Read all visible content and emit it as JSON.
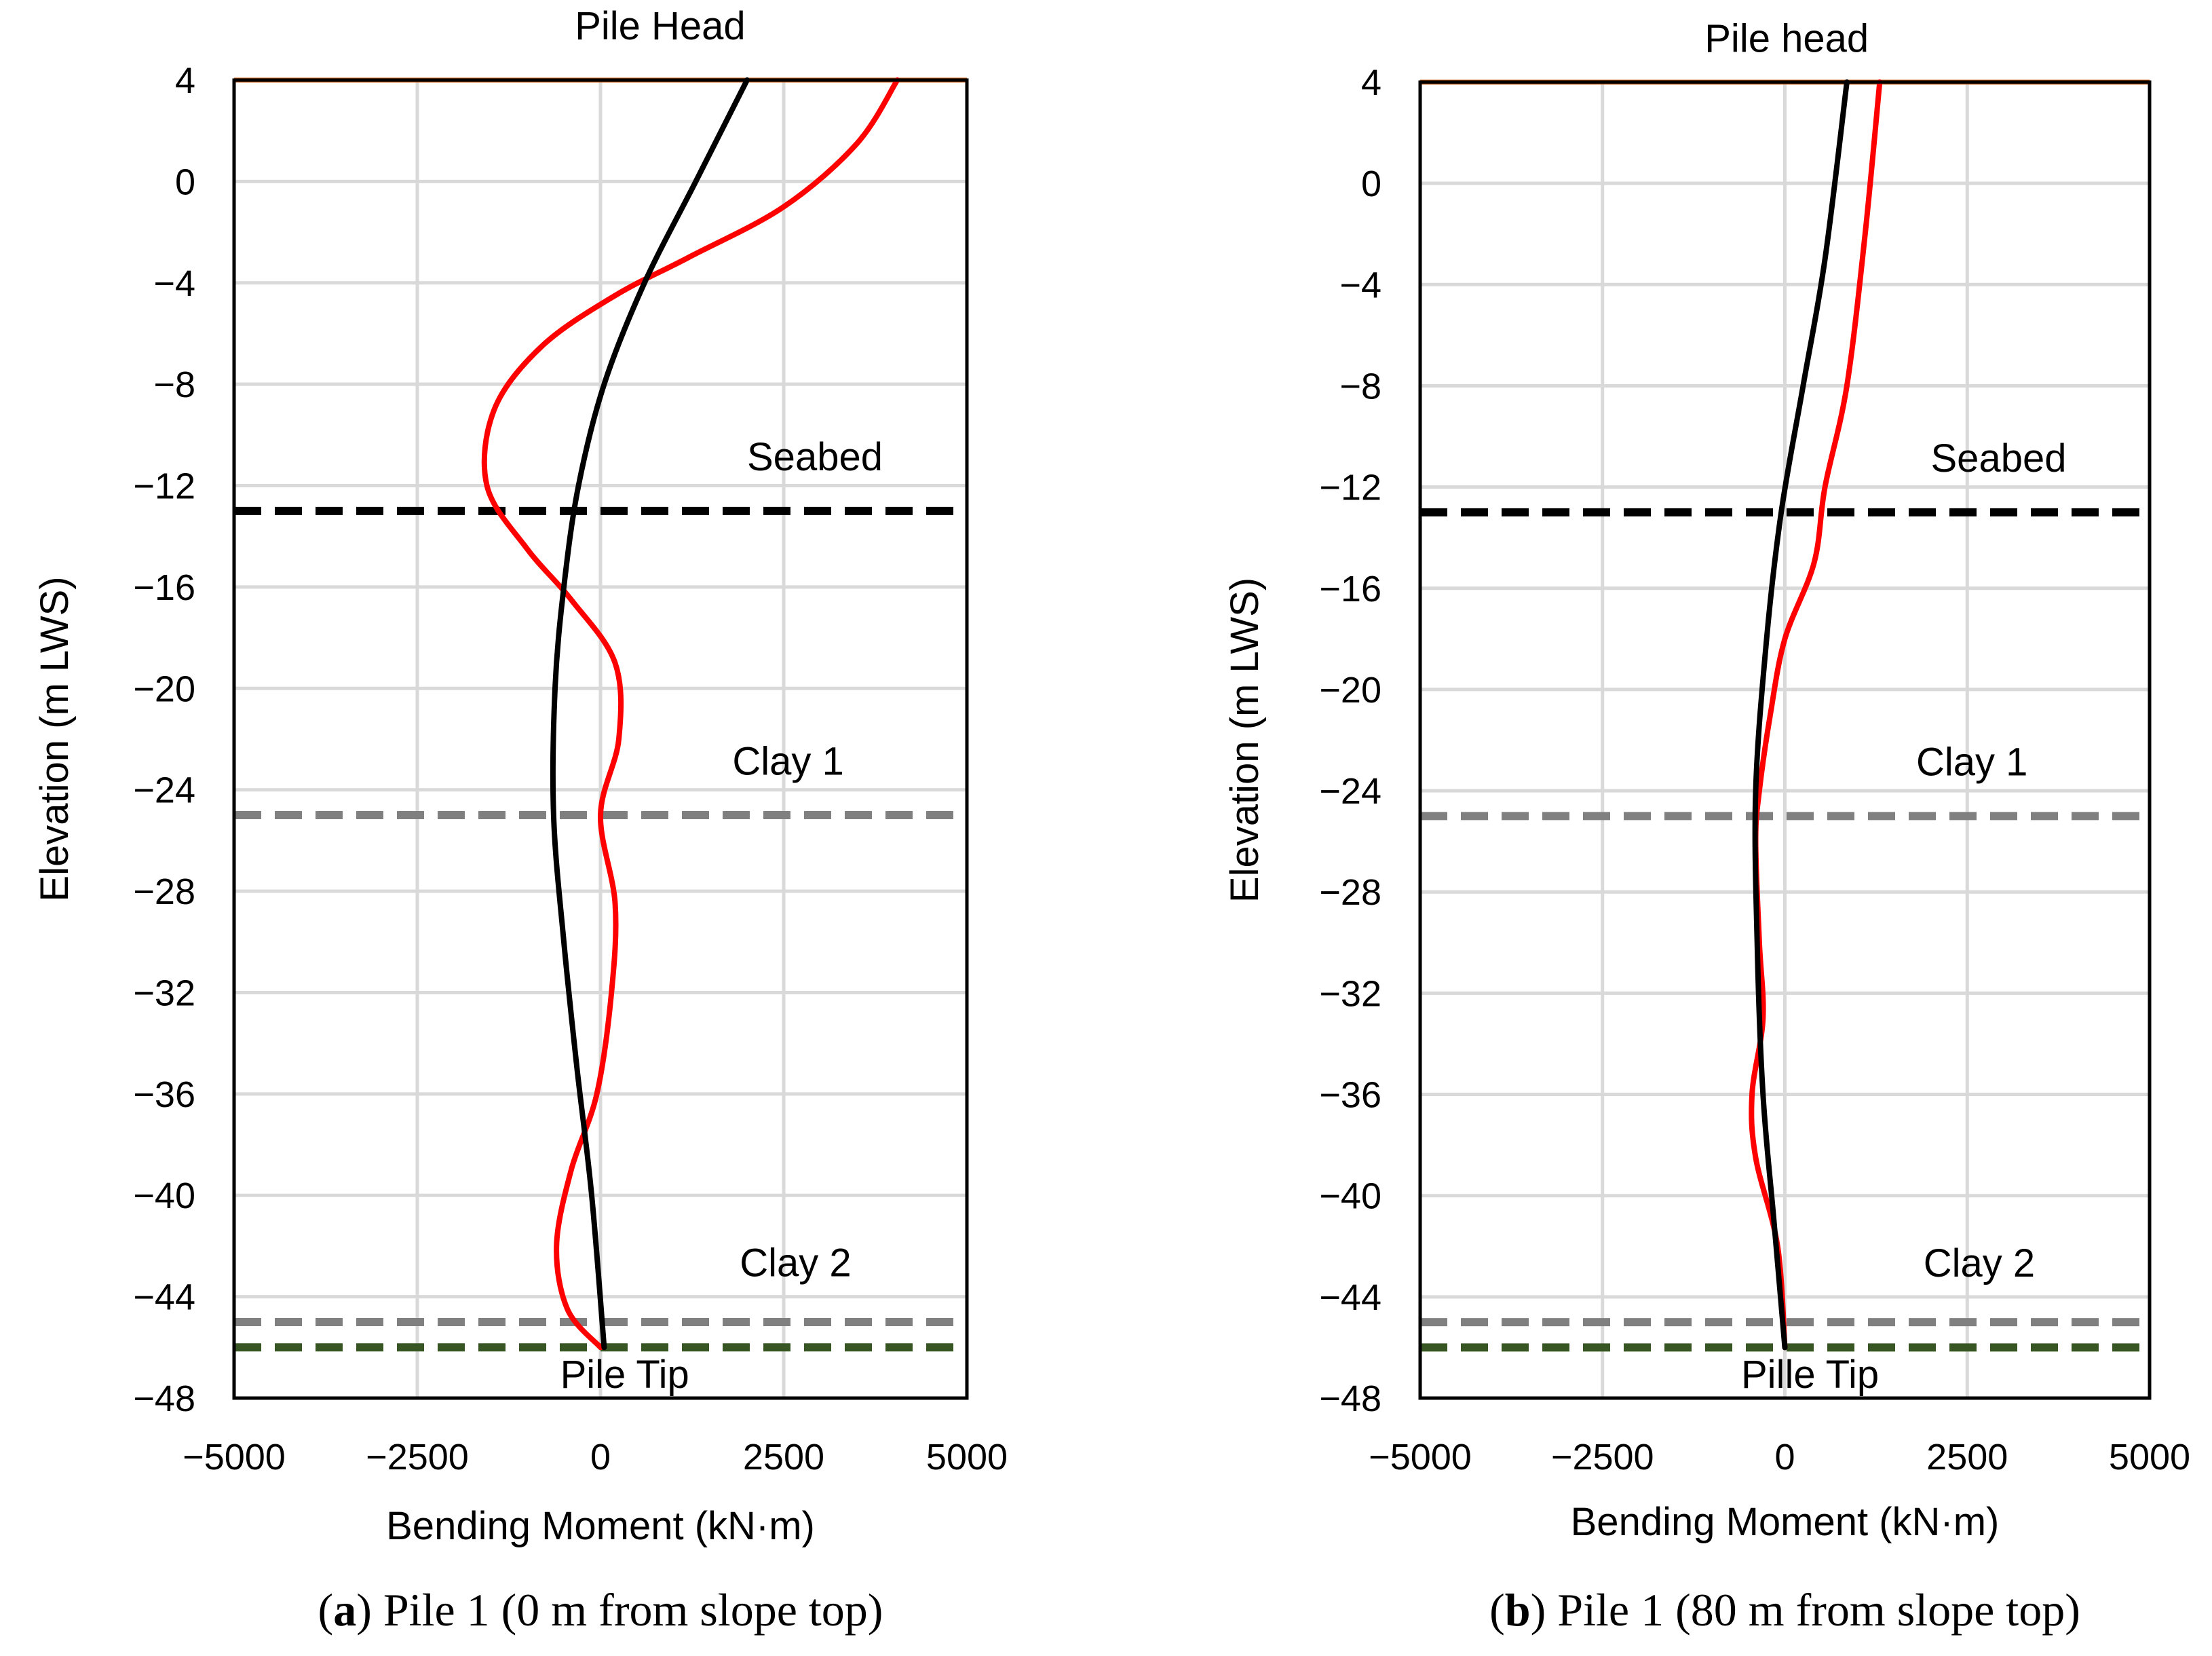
{
  "chart_data": [
    {
      "type": "line",
      "panel_label": "a",
      "caption": "Pile 1 (0 m from slope top)",
      "xlabel": "Bending Moment (kN·m)",
      "ylabel": "Elevation (m LWS)",
      "xlim": [
        -5000,
        5000
      ],
      "ylim": [
        -48,
        4
      ],
      "xticks": [
        -5000,
        -2500,
        0,
        2500,
        5000
      ],
      "xtick_labels": [
        "−5000",
        "−2500",
        "0",
        "2500",
        "5000"
      ],
      "yticks": [
        4,
        0,
        -4,
        -8,
        -12,
        -16,
        -20,
        -24,
        -28,
        -32,
        -36,
        -40,
        -44,
        -48
      ],
      "ytick_labels": [
        "4",
        "0",
        "−4",
        "−8",
        "−12",
        "−16",
        "−20",
        "−24",
        "−28",
        "−32",
        "−36",
        "−40",
        "−44",
        "−48"
      ],
      "grid": true,
      "reference_lines": [
        {
          "elevation": 4,
          "color": "#c55a11",
          "style": "solid"
        },
        {
          "elevation": -13,
          "color": "#000000",
          "style": "dashed"
        },
        {
          "elevation": -25,
          "color": "#808080",
          "style": "dashed"
        },
        {
          "elevation": -45,
          "color": "#808080",
          "style": "dashed"
        },
        {
          "elevation": -46,
          "color": "#375623",
          "style": "dashed"
        }
      ],
      "annotations": [
        {
          "text": "Pile Head",
          "x": -350,
          "y": 5.6
        },
        {
          "text": "Seabed",
          "x": 2000,
          "y": -11.4
        },
        {
          "text": "Clay 1",
          "x": 1800,
          "y": -23.4
        },
        {
          "text": "Clay 2",
          "x": 1900,
          "y": -43.2
        },
        {
          "text": "Pile  Tip",
          "x": -550,
          "y": -47.6
        }
      ],
      "series": [
        {
          "name": "red",
          "color": "#ff0000",
          "points": [
            [
              4050,
              4
            ],
            [
              3500,
              1.5
            ],
            [
              2500,
              -1
            ],
            [
              1200,
              -3
            ],
            [
              200,
              -4.5
            ],
            [
              -800,
              -6.5
            ],
            [
              -1450,
              -9
            ],
            [
              -1550,
              -12
            ],
            [
              -1000,
              -14.5
            ],
            [
              -400,
              -16.5
            ],
            [
              200,
              -19
            ],
            [
              250,
              -22
            ],
            [
              0,
              -25
            ],
            [
              200,
              -28.5
            ],
            [
              150,
              -32
            ],
            [
              -50,
              -36
            ],
            [
              -400,
              -39
            ],
            [
              -600,
              -42
            ],
            [
              -450,
              -44.5
            ],
            [
              0,
              -46
            ]
          ]
        },
        {
          "name": "black",
          "color": "#000000",
          "points": [
            [
              2000,
              4
            ],
            [
              1300,
              0
            ],
            [
              600,
              -4
            ],
            [
              50,
              -8
            ],
            [
              -300,
              -12
            ],
            [
              -500,
              -16
            ],
            [
              -620,
              -20
            ],
            [
              -640,
              -25
            ],
            [
              -500,
              -30
            ],
            [
              -320,
              -35
            ],
            [
              -120,
              -40
            ],
            [
              50,
              -46
            ]
          ]
        }
      ]
    },
    {
      "type": "line",
      "panel_label": "b",
      "caption": "Pile 1 (80 m from slope top)",
      "xlabel": "Bending Moment (kN·m)",
      "ylabel": "Elevation (m LWS)",
      "xlim": [
        -5000,
        5000
      ],
      "ylim": [
        -48,
        4
      ],
      "xticks": [
        -5000,
        -2500,
        0,
        2500,
        5000
      ],
      "xtick_labels": [
        "−5000",
        "−2500",
        "0",
        "2500",
        "5000"
      ],
      "yticks": [
        4,
        0,
        -4,
        -8,
        -12,
        -16,
        -20,
        -24,
        -28,
        -32,
        -36,
        -40,
        -44,
        -48
      ],
      "ytick_labels": [
        "4",
        "0",
        "−4",
        "−8",
        "−12",
        "−16",
        "−20",
        "−24",
        "−28",
        "−32",
        "−36",
        "−40",
        "−44",
        "−48"
      ],
      "grid": true,
      "reference_lines": [
        {
          "elevation": 4,
          "color": "#c55a11",
          "style": "solid"
        },
        {
          "elevation": -13,
          "color": "#000000",
          "style": "dashed"
        },
        {
          "elevation": -25,
          "color": "#808080",
          "style": "dashed"
        },
        {
          "elevation": -45,
          "color": "#808080",
          "style": "dashed"
        },
        {
          "elevation": -46,
          "color": "#375623",
          "style": "dashed"
        }
      ],
      "annotations": [
        {
          "text": "Pile head",
          "x": -1100,
          "y": 5.2
        },
        {
          "text": "Seabed",
          "x": 2000,
          "y": -11.4
        },
        {
          "text": "Clay 1",
          "x": 1800,
          "y": -23.4
        },
        {
          "text": "Clay 2",
          "x": 1900,
          "y": -43.2
        },
        {
          "text": "Pille Tip",
          "x": -600,
          "y": -47.6
        }
      ],
      "series": [
        {
          "name": "red",
          "color": "#ff0000",
          "points": [
            [
              1300,
              4
            ],
            [
              1100,
              -2
            ],
            [
              850,
              -8
            ],
            [
              550,
              -12
            ],
            [
              400,
              -15
            ],
            [
              0,
              -18
            ],
            [
              -200,
              -21
            ],
            [
              -350,
              -24
            ],
            [
              -400,
              -26
            ],
            [
              -350,
              -30
            ],
            [
              -300,
              -33
            ],
            [
              -450,
              -36
            ],
            [
              -400,
              -38.5
            ],
            [
              -100,
              -42
            ],
            [
              0,
              -46
            ]
          ]
        },
        {
          "name": "black",
          "color": "#000000",
          "points": [
            [
              850,
              4
            ],
            [
              550,
              -3
            ],
            [
              250,
              -8
            ],
            [
              -50,
              -13
            ],
            [
              -250,
              -18
            ],
            [
              -400,
              -24
            ],
            [
              -380,
              -30
            ],
            [
              -300,
              -36
            ],
            [
              -150,
              -41
            ],
            [
              0,
              -46
            ]
          ]
        }
      ]
    }
  ]
}
